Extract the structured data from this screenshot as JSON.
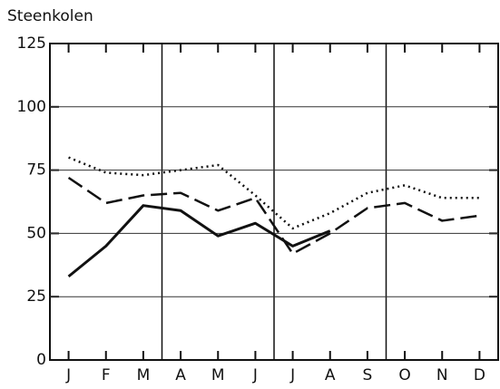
{
  "chart_data": {
    "type": "line",
    "title": "Steenkolen",
    "categories": [
      "J",
      "F",
      "M",
      "A",
      "M",
      "J",
      "J",
      "A",
      "S",
      "O",
      "N",
      "D"
    ],
    "series": [
      {
        "color": "#111111",
        "style": "solid",
        "values": [
          33,
          45,
          61,
          59,
          49,
          54,
          45,
          51,
          null,
          null,
          null,
          null
        ]
      },
      {
        "color": "#111111",
        "style": "dashed",
        "values": [
          72,
          62,
          65,
          66,
          59,
          64,
          42,
          50,
          60,
          62,
          55,
          57
        ]
      },
      {
        "color": "#111111",
        "style": "dotted",
        "values": [
          80,
          74,
          73,
          75,
          77,
          65,
          52,
          58,
          66,
          69,
          64,
          64
        ]
      }
    ],
    "ylim": [
      0,
      125
    ],
    "yticks": [
      0,
      25,
      50,
      75,
      100,
      125
    ],
    "grid": true
  }
}
